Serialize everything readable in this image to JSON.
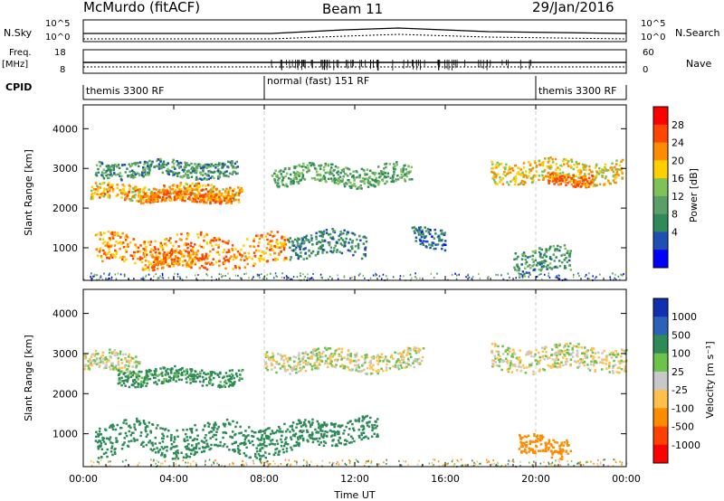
{
  "header": {
    "station": "McMurdo (fitACF)",
    "beam": "Beam 11",
    "date": "29/Jan/2016"
  },
  "params": {
    "nsky_label": "N.Sky",
    "nsky_ticks": [
      "10^5",
      "10^0"
    ],
    "nsearch_label": "N.Search",
    "nsearch_ticks": [
      "10^5",
      "10^0"
    ],
    "freq_label": "Freq.",
    "freq_unit": "[MHz]",
    "freq_ticks": [
      "18",
      "8"
    ],
    "nave_label": "Nave",
    "nave_ticks": [
      "60",
      "0"
    ],
    "cpid_label": "CPID"
  },
  "cpid_segments": [
    {
      "label": "themis 3300 RF",
      "start": 0,
      "end": 8
    },
    {
      "label": "normal (fast) 151 RF",
      "start": 8,
      "end": 20
    },
    {
      "label": "themis 3300 RF",
      "start": 20,
      "end": 24
    }
  ],
  "colors": {
    "power": [
      "#0000ff",
      "#1f4fb4",
      "#2e8b57",
      "#5a9f6a",
      "#7fc25a",
      "#ffd000",
      "#ff8c00",
      "#ff4500",
      "#ff0000"
    ],
    "velocity": [
      "#1030b0",
      "#2b62b8",
      "#2e8b57",
      "#6cc24a",
      "#c8c8c8",
      "#ffc04c",
      "#ff8c00",
      "#ff4000",
      "#ff0000"
    ],
    "ground_scatter": "#bebebe"
  },
  "chart_data": [
    {
      "type": "heatmap",
      "title": "Power",
      "xlabel": "Time UT",
      "ylabel": "Slant Range [km]",
      "xlim": [
        0,
        24
      ],
      "ylim": [
        180,
        4600
      ],
      "x_ticks": [
        "00:00",
        "04:00",
        "08:00",
        "12:00",
        "16:00",
        "20:00",
        "00:00"
      ],
      "y_ticks": [
        1000,
        2000,
        3000,
        4000
      ],
      "colorbar_label": "Power [dB]",
      "colorbar_ticks": [
        4,
        8,
        12,
        16,
        20,
        24,
        28
      ],
      "bands": [
        {
          "t_start": 0.3,
          "t_end": 7.0,
          "range_center": 2420,
          "range_half_width": 200,
          "power": 24
        },
        {
          "t_start": 2.5,
          "t_end": 6.5,
          "range_center": 2300,
          "range_half_width": 120,
          "power": 28
        },
        {
          "t_start": 0.5,
          "t_end": 6.8,
          "range_center": 3000,
          "range_half_width": 200,
          "power": 12
        },
        {
          "t_start": 8.3,
          "t_end": 14.5,
          "range_center": 2850,
          "range_half_width": 250,
          "power": 14
        },
        {
          "t_start": 18.0,
          "t_end": 23.8,
          "range_center": 2950,
          "range_half_width": 280,
          "power": 22
        },
        {
          "t_start": 20.5,
          "t_end": 22.5,
          "range_center": 2750,
          "range_half_width": 150,
          "power": 28
        },
        {
          "t_start": 0.5,
          "t_end": 9.0,
          "range_center": 950,
          "range_half_width": 380,
          "power": 26
        },
        {
          "t_start": 3.0,
          "t_end": 5.5,
          "range_center": 700,
          "range_half_width": 220,
          "power": 28
        },
        {
          "t_start": 9.0,
          "t_end": 12.5,
          "range_center": 1100,
          "range_half_width": 300,
          "power": 10
        },
        {
          "t_start": 14.5,
          "t_end": 16.0,
          "range_center": 1300,
          "range_half_width": 250,
          "power": 8
        },
        {
          "t_start": 19.0,
          "t_end": 21.5,
          "range_center": 700,
          "range_half_width": 300,
          "power": 12
        }
      ]
    },
    {
      "type": "heatmap",
      "title": "Velocity",
      "xlabel": "Time UT",
      "ylabel": "Slant Range [km]",
      "xlim": [
        0,
        24
      ],
      "ylim": [
        180,
        4600
      ],
      "x_ticks": [
        "00:00",
        "04:00",
        "08:00",
        "12:00",
        "16:00",
        "20:00",
        "00:00"
      ],
      "y_ticks": [
        1000,
        2000,
        3000,
        4000
      ],
      "colorbar_label": "Velocity [m s^-1]",
      "colorbar_ticks": [
        1000,
        500,
        100,
        25,
        -25,
        -100,
        -500,
        -1000
      ],
      "bands": [
        {
          "t_start": 0.0,
          "t_end": 2.5,
          "range_center": 2800,
          "range_half_width": 250,
          "velocity": 0
        },
        {
          "t_start": 1.5,
          "t_end": 7.0,
          "range_center": 2450,
          "range_half_width": 200,
          "velocity": 150
        },
        {
          "t_start": 8.0,
          "t_end": 15.0,
          "range_center": 2850,
          "range_half_width": 250,
          "velocity": 0
        },
        {
          "t_start": 18.0,
          "t_end": 24.0,
          "range_center": 2900,
          "range_half_width": 300,
          "velocity": 0
        },
        {
          "t_start": 0.5,
          "t_end": 9.5,
          "range_center": 900,
          "range_half_width": 380,
          "velocity": 200
        },
        {
          "t_start": 9.5,
          "t_end": 13.0,
          "range_center": 1100,
          "range_half_width": 300,
          "velocity": 200
        },
        {
          "t_start": 19.2,
          "t_end": 21.5,
          "range_center": 700,
          "range_half_width": 250,
          "velocity": -300
        }
      ]
    }
  ],
  "axes": {
    "power_ylabel": "Slant Range [km]",
    "velocity_ylabel": "Slant Range [km]",
    "power_cbar": "Power [dB]",
    "velocity_cbar": "Velocity [m s⁻¹]",
    "xlabel": "Time UT"
  }
}
